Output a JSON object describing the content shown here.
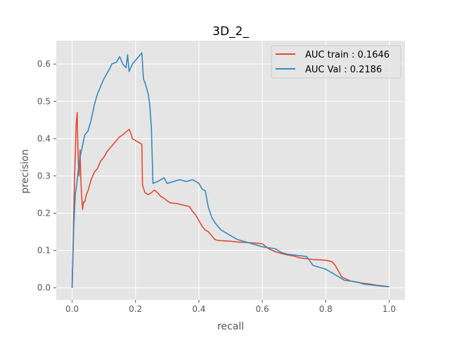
{
  "chart_data": {
    "type": "line",
    "title": "3D_2_",
    "xlabel": "recall",
    "ylabel": "precision",
    "xlim": [
      -0.05,
      1.05
    ],
    "ylim": [
      -0.0325,
      0.6625
    ],
    "xticks": [
      0.0,
      0.2,
      0.4,
      0.6,
      0.8,
      1.0
    ],
    "xtick_labels": [
      "0.0",
      "0.2",
      "0.4",
      "0.6",
      "0.8",
      "1.0"
    ],
    "yticks": [
      0.0,
      0.1,
      0.2,
      0.3,
      0.4,
      0.5,
      0.6
    ],
    "ytick_labels": [
      "0.0",
      "0.1",
      "0.2",
      "0.3",
      "0.4",
      "0.5",
      "0.6"
    ],
    "grid": true,
    "legend_position": "top-right",
    "series": [
      {
        "name": "AUC train : 0.1646",
        "color": "#e24a33",
        "x": [
          0.0,
          0.008,
          0.013,
          0.016,
          0.018,
          0.02,
          0.022,
          0.025,
          0.028,
          0.03,
          0.033,
          0.036,
          0.04,
          0.045,
          0.05,
          0.06,
          0.07,
          0.08,
          0.09,
          0.1,
          0.11,
          0.12,
          0.13,
          0.14,
          0.15,
          0.16,
          0.17,
          0.18,
          0.185,
          0.19,
          0.2,
          0.21,
          0.22,
          0.222,
          0.23,
          0.24,
          0.25,
          0.26,
          0.27,
          0.28,
          0.29,
          0.3,
          0.31,
          0.33,
          0.35,
          0.37,
          0.38,
          0.39,
          0.4,
          0.41,
          0.42,
          0.43,
          0.44,
          0.45,
          0.46,
          0.48,
          0.5,
          0.52,
          0.54,
          0.56,
          0.58,
          0.6,
          0.62,
          0.64,
          0.66,
          0.68,
          0.7,
          0.72,
          0.74,
          0.76,
          0.78,
          0.8,
          0.82,
          0.83,
          0.84,
          0.85,
          0.86,
          0.88,
          0.9,
          0.92,
          0.94,
          0.96,
          0.98,
          1.0
        ],
        "y": [
          0.0,
          0.3,
          0.44,
          0.47,
          0.38,
          0.33,
          0.3,
          0.37,
          0.28,
          0.25,
          0.21,
          0.23,
          0.23,
          0.25,
          0.26,
          0.29,
          0.31,
          0.32,
          0.34,
          0.35,
          0.365,
          0.375,
          0.385,
          0.395,
          0.405,
          0.41,
          0.418,
          0.425,
          0.415,
          0.4,
          0.395,
          0.39,
          0.385,
          0.275,
          0.255,
          0.25,
          0.255,
          0.262,
          0.255,
          0.245,
          0.24,
          0.233,
          0.228,
          0.226,
          0.222,
          0.218,
          0.205,
          0.195,
          0.18,
          0.165,
          0.155,
          0.15,
          0.14,
          0.13,
          0.127,
          0.126,
          0.125,
          0.123,
          0.122,
          0.121,
          0.12,
          0.118,
          0.105,
          0.097,
          0.092,
          0.088,
          0.085,
          0.08,
          0.078,
          0.076,
          0.075,
          0.074,
          0.07,
          0.06,
          0.045,
          0.03,
          0.025,
          0.018,
          0.015,
          0.012,
          0.01,
          0.007,
          0.005,
          0.003
        ]
      },
      {
        "name": "AUC Val : 0.2186",
        "color": "#348abd",
        "x": [
          0.0,
          0.005,
          0.01,
          0.015,
          0.02,
          0.025,
          0.03,
          0.035,
          0.04,
          0.045,
          0.05,
          0.06,
          0.07,
          0.08,
          0.09,
          0.1,
          0.11,
          0.12,
          0.125,
          0.14,
          0.15,
          0.16,
          0.17,
          0.175,
          0.18,
          0.19,
          0.2,
          0.21,
          0.22,
          0.225,
          0.23,
          0.24,
          0.245,
          0.25,
          0.255,
          0.27,
          0.28,
          0.29,
          0.3,
          0.32,
          0.34,
          0.36,
          0.38,
          0.4,
          0.41,
          0.42,
          0.43,
          0.44,
          0.45,
          0.46,
          0.47,
          0.48,
          0.5,
          0.52,
          0.54,
          0.56,
          0.58,
          0.6,
          0.64,
          0.66,
          0.68,
          0.7,
          0.72,
          0.74,
          0.76,
          0.78,
          0.8,
          0.82,
          0.84,
          0.86,
          0.88,
          0.9,
          0.92,
          0.94,
          0.96,
          0.98,
          1.0
        ],
        "y": [
          0.0,
          0.16,
          0.25,
          0.28,
          0.32,
          0.35,
          0.37,
          0.39,
          0.41,
          0.415,
          0.42,
          0.45,
          0.49,
          0.52,
          0.54,
          0.56,
          0.575,
          0.59,
          0.6,
          0.605,
          0.62,
          0.6,
          0.59,
          0.625,
          0.58,
          0.6,
          0.61,
          0.62,
          0.63,
          0.56,
          0.55,
          0.52,
          0.49,
          0.43,
          0.28,
          0.285,
          0.29,
          0.295,
          0.28,
          0.285,
          0.29,
          0.285,
          0.29,
          0.28,
          0.265,
          0.26,
          0.215,
          0.19,
          0.175,
          0.165,
          0.155,
          0.15,
          0.14,
          0.13,
          0.125,
          0.12,
          0.115,
          0.11,
          0.105,
          0.095,
          0.09,
          0.088,
          0.086,
          0.084,
          0.06,
          0.055,
          0.05,
          0.04,
          0.03,
          0.02,
          0.018,
          0.015,
          0.01,
          0.008,
          0.006,
          0.004,
          0.003
        ]
      }
    ]
  }
}
